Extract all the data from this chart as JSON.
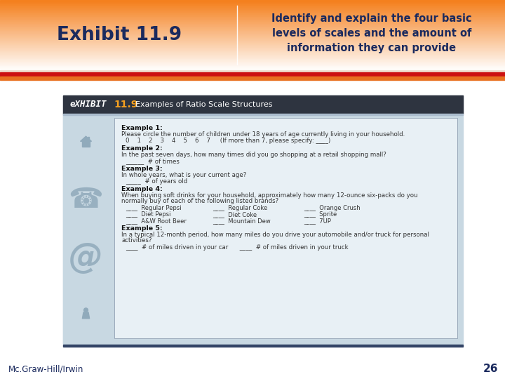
{
  "title_left": "Exhibit 11.9",
  "title_right": "Identify and explain the four basic\nlevels of scales and the amount of\ninformation they can provide",
  "exhibit_label": "eXHIBIT",
  "exhibit_number": "11.9",
  "exhibit_subtitle": "Examples of Ratio Scale Structures",
  "mcgraw_text": "Mc.Graw-Hill/Irwin",
  "page_number": "26",
  "header_text_color": "#1B2A5E",
  "exhibit_header_bg": "#2E3440",
  "red_stripe_color": "#CC1111",
  "orange_stripe_color": "#E87020",
  "content_bg": "#C8D8E2",
  "inner_box_bg": "#E8F0F5",
  "sidebar_bg": "#C8D8E2",
  "example1_bold": "Example 1:",
  "example1_q": "Please circle the number of children under 18 years of age currently living in your household.",
  "example1_nums": "0    1    2    3    4    5    6    7     (If more than 7, please specify: ____)",
  "example2_bold": "Example 2:",
  "example2_q": "In the past seven days, how many times did you go shopping at a retail shopping mall?",
  "example2_ans": "______  # of times",
  "example3_bold": "Example 3:",
  "example3_q": "In whole years, what is your current age?",
  "example3_ans": "_____  # of years old",
  "example4_bold": "Example 4:",
  "example4_q": "When buying soft drinks for your household, approximately how many 12-ounce six-packs do you\nnormally buy of each of the following listed brands?",
  "example4_items": [
    [
      "____  Regular Pepsi",
      "____  Regular Coke",
      "____  Orange Crush"
    ],
    [
      "____  Diet Pepsi",
      "____  Diet Coke",
      "____  Sprite"
    ],
    [
      "____  A&W Root Beer",
      "____  Mountain Dew",
      "____  7UP"
    ]
  ],
  "example5_bold": "Example 5:",
  "example5_q": "In a typical 12-month period, how many miles do you drive your automobile and/or truck for personal\nactivities?",
  "example5_ans": "____  # of miles driven in your car      ____  # of miles driven in your truck"
}
